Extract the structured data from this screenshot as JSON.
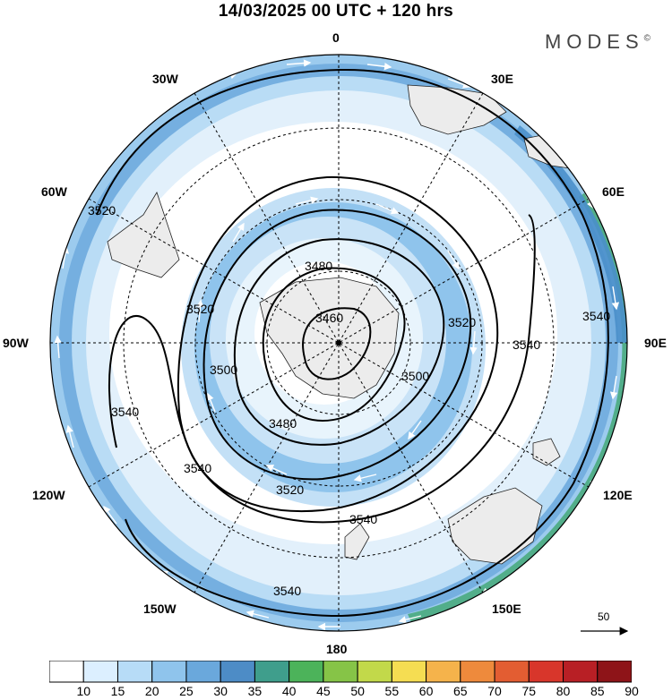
{
  "title": "14/03/2025  00 UTC  + 120 hrs",
  "logo": "MODES",
  "logo_mark": "©",
  "longitude_labels": [
    "0",
    "30E",
    "60E",
    "90E",
    "120E",
    "150E",
    "180",
    "150W",
    "120W",
    "90W",
    "60W",
    "30W"
  ],
  "contour_labels": [
    "3460",
    "3480",
    "3480",
    "3500",
    "3500",
    "3520",
    "3520",
    "3520",
    "3520",
    "3540",
    "3540",
    "3540",
    "3540",
    "3540",
    "3540"
  ],
  "wind_reference": "50",
  "colorbar": {
    "ticks": [
      "10",
      "15",
      "20",
      "25",
      "30",
      "35",
      "40",
      "45",
      "50",
      "55",
      "60",
      "65",
      "70",
      "75",
      "80",
      "85",
      "90"
    ],
    "colors": [
      "#ffffff",
      "#dcefff",
      "#b7dcf7",
      "#8fc4ec",
      "#6aa8dc",
      "#4d8cc6",
      "#3f9e8c",
      "#4cb35a",
      "#86c447",
      "#c2d94a",
      "#f5dd52",
      "#f5b34b",
      "#ee8a3c",
      "#e35d32",
      "#d8362b",
      "#b81f25",
      "#8e1418"
    ]
  },
  "icons": {
    "north_pole_marker": "pole-dot",
    "wind_vector": "arrow"
  }
}
